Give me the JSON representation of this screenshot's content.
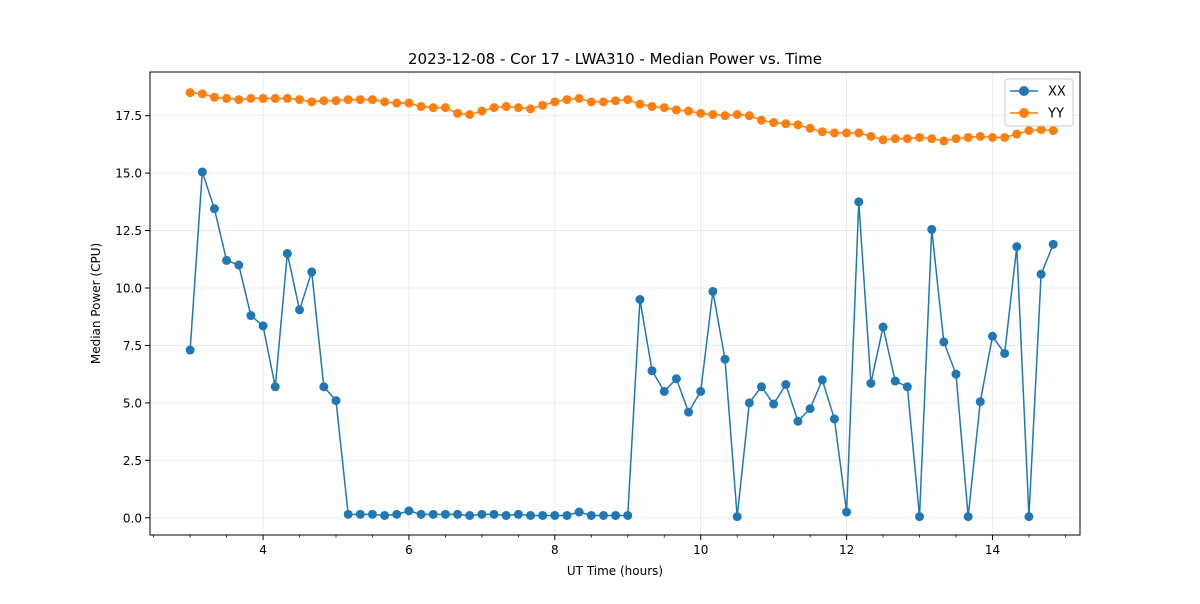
{
  "chart_data": {
    "type": "line",
    "title": "2023-12-08 - Cor 17 - LWA310 - Median Power vs. Time",
    "xlabel": "UT Time (hours)",
    "ylabel": "Median Power (CPU)",
    "xlim": [
      2.45,
      15.2
    ],
    "ylim": [
      -0.75,
      19.4
    ],
    "xticks": [
      4,
      6,
      8,
      10,
      12,
      14
    ],
    "xtick_labels": [
      "4",
      "6",
      "8",
      "10",
      "12",
      "14"
    ],
    "xminor_step": 0.5,
    "yticks": [
      0.0,
      2.5,
      5.0,
      7.5,
      10.0,
      12.5,
      15.0,
      17.5
    ],
    "ytick_labels": [
      "0.0",
      "2.5",
      "5.0",
      "7.5",
      "10.0",
      "12.5",
      "15.0",
      "17.5"
    ],
    "grid": true,
    "legend_position": "top-right",
    "marker": "circle",
    "x": [
      3.0,
      3.167,
      3.333,
      3.5,
      3.667,
      3.833,
      4.0,
      4.167,
      4.333,
      4.5,
      4.667,
      4.833,
      5.0,
      5.167,
      5.333,
      5.5,
      5.667,
      5.833,
      6.0,
      6.167,
      6.333,
      6.5,
      6.667,
      6.833,
      7.0,
      7.167,
      7.333,
      7.5,
      7.667,
      7.833,
      8.0,
      8.167,
      8.333,
      8.5,
      8.667,
      8.833,
      9.0,
      9.167,
      9.333,
      9.5,
      9.667,
      9.833,
      10.0,
      10.167,
      10.333,
      10.5,
      10.667,
      10.833,
      11.0,
      11.167,
      11.333,
      11.5,
      11.667,
      11.833,
      12.0,
      12.167,
      12.333,
      12.5,
      12.667,
      12.833,
      13.0,
      13.167,
      13.333,
      13.5,
      13.667,
      13.833,
      14.0,
      14.167,
      14.333,
      14.5,
      14.667,
      14.833
    ],
    "series": [
      {
        "name": "XX",
        "color": "#1f77b4",
        "values": [
          7.3,
          15.05,
          13.45,
          11.2,
          11.0,
          8.8,
          8.35,
          5.7,
          11.5,
          9.05,
          10.7,
          5.7,
          5.1,
          0.15,
          0.15,
          0.15,
          0.1,
          0.15,
          0.3,
          0.15,
          0.15,
          0.15,
          0.15,
          0.1,
          0.15,
          0.15,
          0.1,
          0.15,
          0.1,
          0.1,
          0.1,
          0.1,
          0.25,
          0.1,
          0.1,
          0.1,
          0.1,
          9.5,
          6.4,
          5.5,
          6.05,
          4.6,
          5.5,
          9.85,
          6.9,
          0.05,
          5.0,
          5.7,
          4.95,
          5.8,
          4.2,
          4.75,
          6.0,
          4.3,
          0.25,
          13.75,
          5.85,
          8.3,
          5.95,
          5.7,
          0.05,
          12.55,
          7.65,
          6.25,
          0.05,
          5.05,
          7.9,
          7.15,
          11.8,
          0.05,
          10.6,
          11.9
        ]
      },
      {
        "name": "YY",
        "color": "#ff7f0e",
        "values": [
          18.5,
          18.45,
          18.3,
          18.25,
          18.2,
          18.25,
          18.25,
          18.25,
          18.25,
          18.2,
          18.1,
          18.15,
          18.15,
          18.2,
          18.2,
          18.2,
          18.1,
          18.05,
          18.05,
          17.9,
          17.85,
          17.85,
          17.6,
          17.55,
          17.7,
          17.85,
          17.9,
          17.85,
          17.8,
          17.95,
          18.1,
          18.2,
          18.25,
          18.1,
          18.1,
          18.15,
          18.2,
          18.0,
          17.9,
          17.85,
          17.75,
          17.7,
          17.6,
          17.55,
          17.5,
          17.55,
          17.5,
          17.3,
          17.2,
          17.15,
          17.1,
          16.95,
          16.8,
          16.75,
          16.75,
          16.75,
          16.6,
          16.45,
          16.5,
          16.5,
          16.55,
          16.5,
          16.4,
          16.5,
          16.55,
          16.6,
          16.55,
          16.55,
          16.7,
          16.85,
          16.9,
          16.85
        ]
      }
    ]
  }
}
